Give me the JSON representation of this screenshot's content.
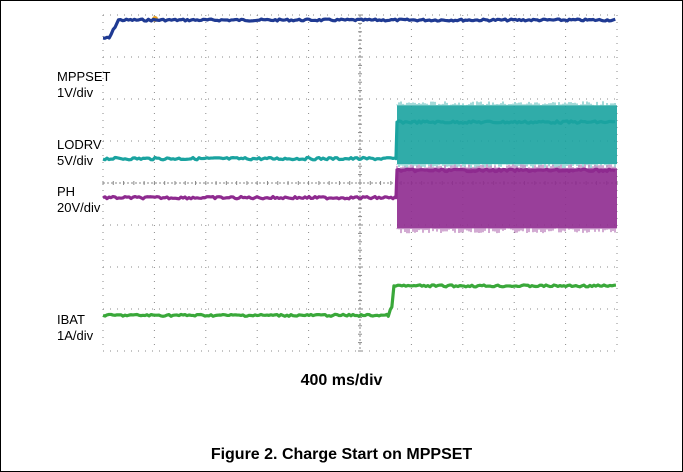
{
  "chart_data": {
    "type": "line",
    "title": "",
    "xlabel": "400 ms/div",
    "caption": "Figure 2. Charge Start on MPPSET",
    "grid": true,
    "divisions": {
      "x": 10,
      "y": 8
    },
    "series": [
      {
        "name": "MPPSET",
        "scale": "1V/div",
        "color": "#1f3a93",
        "noise": 1.0,
        "points": [
          [
            0,
            0.55
          ],
          [
            0.12,
            0.55
          ],
          [
            0.3,
            0.12
          ],
          [
            0.9,
            0.12
          ],
          [
            10,
            0.12
          ]
        ]
      },
      {
        "name": "LODRV",
        "scale": "5V/div",
        "color": "#1aa3a0",
        "noise": 1.2,
        "points": [
          [
            0,
            3.42
          ],
          [
            5.7,
            3.42
          ],
          [
            5.72,
            2.55
          ],
          [
            10,
            2.55
          ]
        ],
        "band_after": 5.72,
        "band_top": 2.15,
        "band_bottom": 3.55
      },
      {
        "name": "PH",
        "scale": "20V/div",
        "color": "#8e2a8f",
        "noise": 1.2,
        "points": [
          [
            0,
            4.35
          ],
          [
            5.7,
            4.35
          ],
          [
            5.72,
            3.7
          ],
          [
            10,
            3.7
          ]
        ],
        "band_after": 5.72,
        "band_top": 3.65,
        "band_bottom": 5.08
      },
      {
        "name": "IBAT",
        "scale": "1A/div",
        "color": "#3aa83a",
        "noise": 1.0,
        "points": [
          [
            0,
            7.15
          ],
          [
            5.55,
            7.15
          ],
          [
            5.62,
            6.95
          ],
          [
            5.66,
            6.45
          ],
          [
            10,
            6.45
          ]
        ]
      }
    ]
  }
}
